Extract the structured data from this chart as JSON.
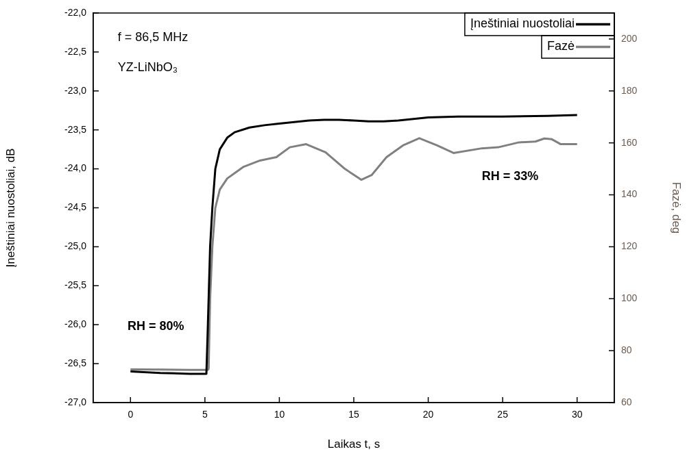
{
  "chart_data": {
    "type": "line",
    "xlabel": "Laikas t, s",
    "ylabel": "Įneštiniai nuostoliai, dB",
    "y2label": "Fazė, deg",
    "xlim": [
      -2.5,
      32.5
    ],
    "xticks": [
      0,
      5,
      10,
      15,
      20,
      25,
      30
    ],
    "ylim": [
      -27,
      -22
    ],
    "yticks": [
      {
        "value": -27,
        "label": "-27,0"
      },
      {
        "value": -26.5,
        "label": "-26,5"
      },
      {
        "value": -26,
        "label": "-26,0"
      },
      {
        "value": -25.5,
        "label": "-25,5"
      },
      {
        "value": -25,
        "label": "-25,0"
      },
      {
        "value": -24.5,
        "label": "-24,5"
      },
      {
        "value": -24,
        "label": "-24,0"
      },
      {
        "value": -23.5,
        "label": "-23,5"
      },
      {
        "value": -23,
        "label": "-23,0"
      },
      {
        "value": -22.5,
        "label": "-22,5"
      },
      {
        "value": -22,
        "label": "-22,0"
      }
    ],
    "y2lim": [
      60,
      210
    ],
    "y2ticks": [
      60,
      80,
      100,
      120,
      140,
      160,
      180,
      200
    ],
    "legend": "top right",
    "grid": false,
    "marker": "none",
    "line_style": "solid",
    "annotations": [
      "f = 86,5 MHz",
      "YZ-LiNbO₃",
      "RH = 33%",
      "RH = 80%"
    ],
    "series": [
      {
        "name": "Įneštiniai nuostoliai",
        "color": "#000000",
        "x": [
          0,
          2,
          4,
          5.1,
          5.2,
          5.35,
          5.5,
          5.7,
          6.0,
          6.5,
          7.0,
          8,
          9,
          10,
          11,
          12,
          13,
          14,
          15,
          16,
          17,
          18,
          19,
          20,
          22,
          25,
          28,
          30
        ],
        "values": [
          -26.6,
          -26.62,
          -26.63,
          -26.63,
          -26.0,
          -25.0,
          -24.5,
          -24.0,
          -23.75,
          -23.6,
          -23.53,
          -23.47,
          -23.44,
          -23.42,
          -23.4,
          -23.38,
          -23.37,
          -23.37,
          -23.38,
          -23.39,
          -23.39,
          -23.38,
          -23.36,
          -23.34,
          -23.33,
          -23.33,
          -23.32,
          -23.31
        ]
      },
      {
        "name": "Fazė",
        "color": "#808080",
        "axis": "y2",
        "x": [
          0,
          2,
          4,
          5.2,
          5.25,
          5.35,
          5.5,
          5.7,
          6.0,
          6.5,
          7.6,
          8.7,
          9.8,
          10.7,
          11.8,
          13.1,
          14.4,
          15.5,
          16.2,
          17.2,
          18.3,
          19.4,
          20.6,
          21.7,
          23.6,
          24.7,
          26.1,
          27.2,
          27.8,
          28.3,
          28.9,
          30
        ],
        "values": [
          72.8,
          72.7,
          72.6,
          72.6,
          73,
          100,
          120,
          135,
          142,
          146.3,
          150.8,
          153.2,
          154.5,
          158.3,
          159.5,
          156.4,
          150,
          145.8,
          147.6,
          154.5,
          159,
          161.8,
          159,
          156.1,
          157.9,
          158.3,
          160.2,
          160.5,
          161.7,
          161.4,
          159.5,
          159.5
        ]
      }
    ]
  }
}
